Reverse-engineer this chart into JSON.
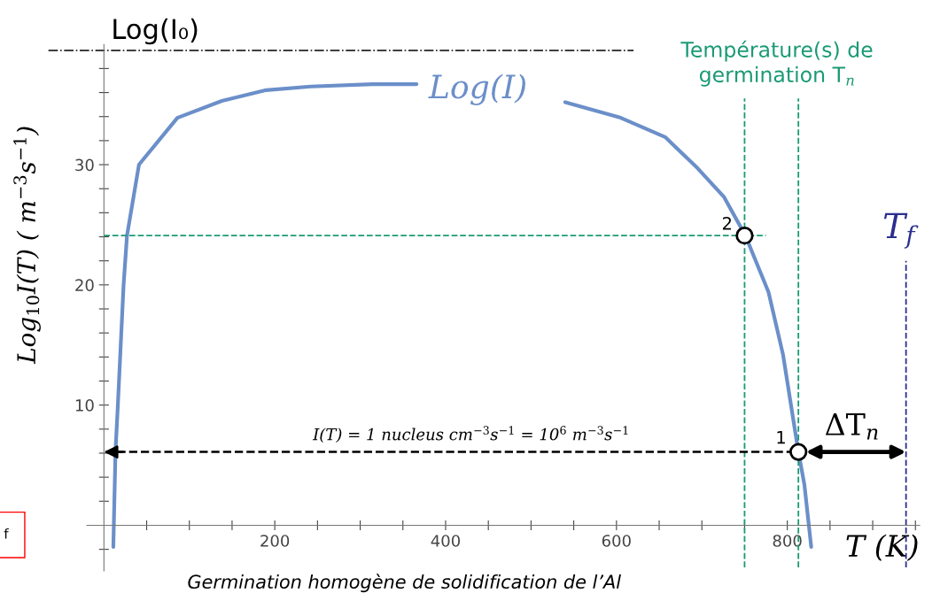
{
  "chart_data": {
    "type": "line",
    "xlabel": "T (K)",
    "ylabel": "Log$_{10}$I(T) ( m$^{−3}$s$^{−1}$)",
    "xlim": [
      -20,
      955
    ],
    "ylim": [
      -3.8,
      40
    ],
    "xticks": [
      {
        "value": 50,
        "label": null
      },
      {
        "value": 100,
        "label": null
      },
      {
        "value": 150,
        "label": null
      },
      200,
      {
        "value": 250,
        "label": null
      },
      {
        "value": 300,
        "label": null
      },
      {
        "value": 350,
        "label": null
      },
      400,
      {
        "value": 450,
        "label": null
      },
      {
        "value": 500,
        "label": null
      },
      {
        "value": 550,
        "label": null
      },
      600,
      {
        "value": 650,
        "label": null
      },
      {
        "value": 700,
        "label": null
      },
      {
        "value": 750,
        "label": null
      },
      800,
      {
        "value": 850,
        "label": null
      },
      {
        "value": 900,
        "label": null
      },
      {
        "value": 950,
        "label": null
      }
    ],
    "yticks": [
      {
        "value": -2,
        "label": null
      },
      {
        "value": 2,
        "label": null
      },
      {
        "value": 4,
        "label": null
      },
      {
        "value": 6,
        "label": null
      },
      {
        "value": 8,
        "label": null
      },
      10,
      {
        "value": 12,
        "label": null
      },
      {
        "value": 14,
        "label": null
      },
      {
        "value": 16,
        "label": null
      },
      {
        "value": 18,
        "label": null
      },
      20,
      {
        "value": 22,
        "label": null
      },
      {
        "value": 24,
        "label": null
      },
      {
        "value": 26,
        "label": null
      },
      {
        "value": 28,
        "label": null
      },
      30,
      {
        "value": 32,
        "label": null
      },
      {
        "value": 34,
        "label": null
      },
      {
        "value": 36,
        "label": null
      },
      {
        "value": 38,
        "label": null
      }
    ],
    "grid": false,
    "legend": false,
    "series": [
      {
        "name": "Log(I)",
        "color": "#6b8fc9",
        "x": [
          11,
          13.5,
          16.3,
          23,
          27,
          41,
          86,
          138,
          190,
          242,
          314,
          366,
          450,
          540,
          605,
          657,
          695,
          726,
          751,
          778,
          795,
          813,
          820,
          828
        ],
        "values": [
          -1.8,
          6.1,
          10,
          20,
          24.1,
          30,
          33.9,
          35.3,
          36.2,
          36.5,
          36.7,
          36.7,
          null,
          35.2,
          33.9,
          32.3,
          29.7,
          27.3,
          24.1,
          19.4,
          14.2,
          6.1,
          3.4,
          -1.8
        ]
      },
      {
        "type": "scatter",
        "marker": "circle",
        "color": "#000000",
        "x": [
          750,
          813
        ],
        "values": [
          24.1,
          6.1
        ]
      }
    ],
    "ref_lines": [
      {
        "axis": "y",
        "value": 39.5,
        "label": "Log(I₀)",
        "color": "#000000",
        "line_style": "dashdot"
      },
      {
        "axis": "x",
        "value": 750,
        "label": "Température(s) de\ngermination T$_{n}$",
        "color": "#1a9a74",
        "line_style": "dashed"
      },
      {
        "axis": "x",
        "value": 813,
        "color": "#1a9a74",
        "line_style": "dashed"
      },
      {
        "axis": "x",
        "value": 939,
        "label": "T$_{f}$",
        "color": "#2b2f8f",
        "line_style": "dashed"
      },
      {
        "axis": "y",
        "value": 24.1,
        "color": "#1a9a74",
        "line_style": "dashed"
      },
      {
        "axis": "y",
        "value": 6.1,
        "label": "I(T) = 1 nucleus cm$^{−3}$s$^{−1}$ = 10$^{6}$ m$^{−3}$s$^{−1}$",
        "color": "#000000",
        "line_style": "dashed"
      }
    ],
    "annotations": [
      {
        "text": "2",
        "x": 750,
        "y": 24.1
      },
      {
        "text": "1",
        "x": 813,
        "y": 6.1
      },
      "ΔT$_{n}$",
      "Germination homogène de solidification de l’Al",
      "f"
    ]
  }
}
